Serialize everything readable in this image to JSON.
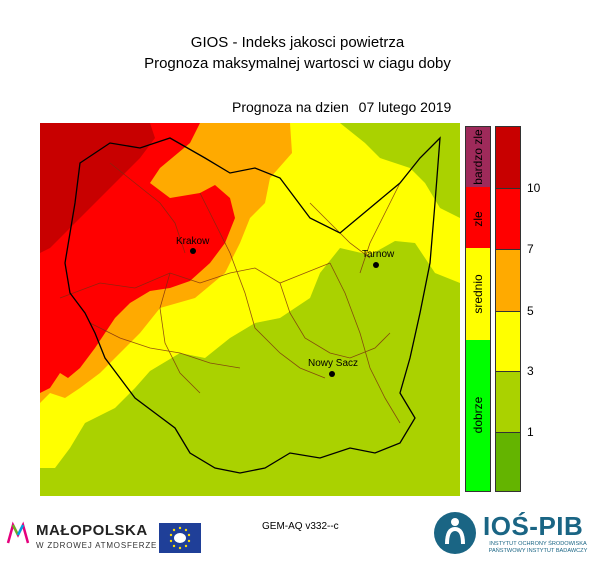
{
  "header": {
    "title": "GIOS - Indeks jakosci powietrza",
    "subtitle": "Prognoza maksymalnej wartosci w ciagu doby",
    "date_prefix": "Prognoza na dzien",
    "date": "07 lutego 2019"
  },
  "map": {
    "cities": [
      {
        "name": "Krakow"
      },
      {
        "name": "Tarnow"
      },
      {
        "name": "Nowy Sacz"
      }
    ]
  },
  "legend": {
    "categories": [
      {
        "label": "bardzo zle",
        "color": "#9e2a5a"
      },
      {
        "label": "zle",
        "color": "#ff0000"
      },
      {
        "label": "srednio",
        "color": "#ffff00"
      },
      {
        "label": "dobrze",
        "color": "#00ff00"
      }
    ],
    "scale_colors": [
      "#c80000",
      "#ff0000",
      "#ffaa00",
      "#ffff00",
      "#aad200",
      "#64b400"
    ],
    "tick_labels": [
      "10",
      "7",
      "5",
      "3",
      "1"
    ]
  },
  "footer": {
    "logo_name": "MAŁOPOLSKA",
    "logo_sub": "W ZDROWEJ ATMOSFERZE",
    "model": "GEM-AQ v332--c",
    "institute": "IOŚ-PIB",
    "institute_line1": "INSTYTUT OCHRONY ŚRODOWISKA",
    "institute_line2": "PAŃSTWOWY INSTYTUT BADAWCZY"
  }
}
